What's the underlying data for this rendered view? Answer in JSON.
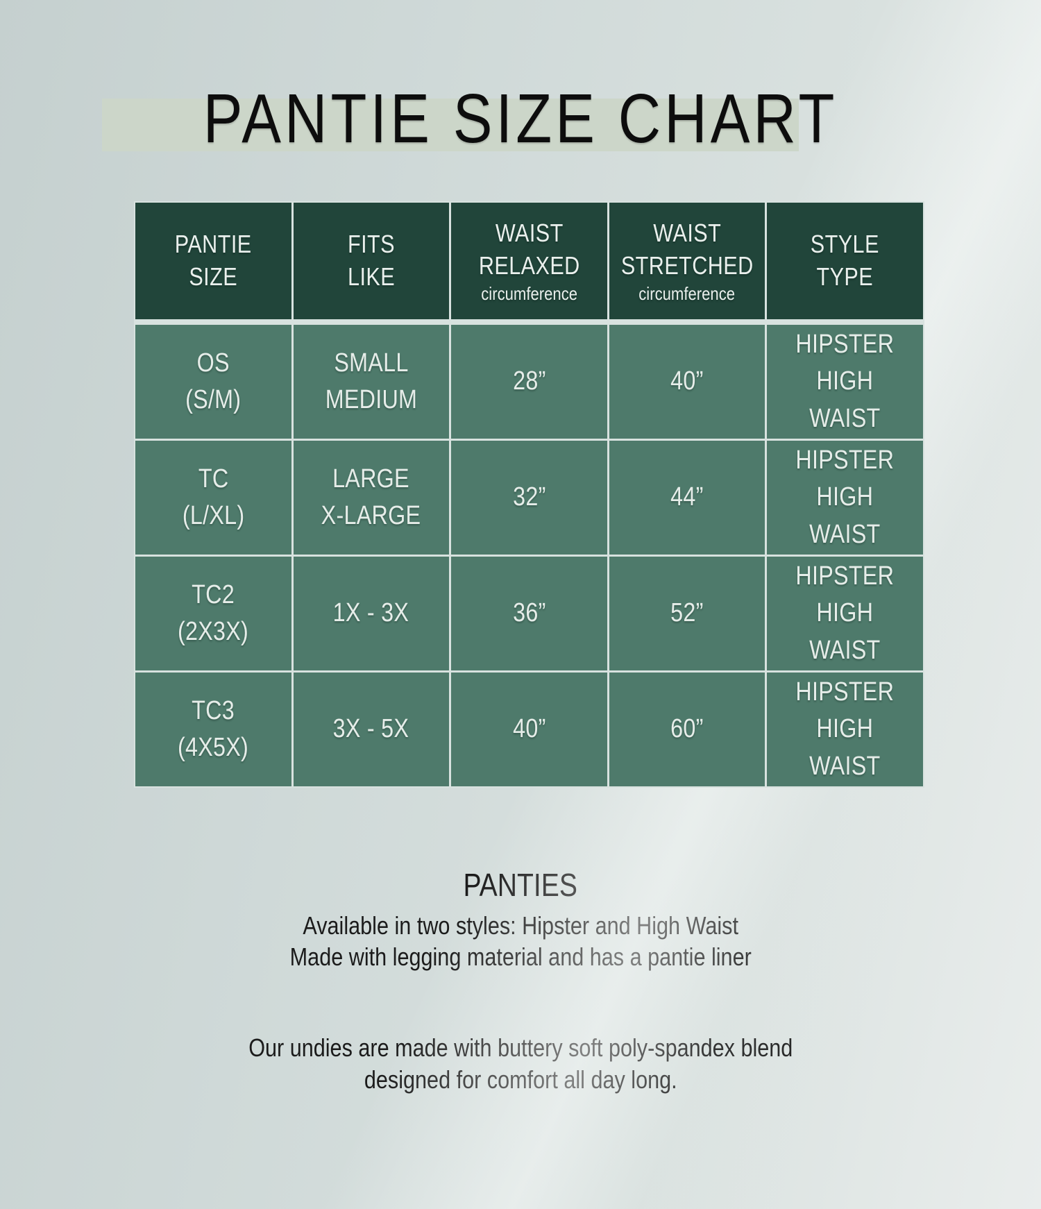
{
  "title": "PANTIE SIZE CHART",
  "colors": {
    "header_bg": "#21453a",
    "cell_bg": "#4e7a6b",
    "divider": "#d8e2df",
    "band": "#ccd6c9",
    "title_color": "#0d0d0d",
    "header_text": "#eaf0ed",
    "cell_text": "#e6ede9",
    "body_text": "#1b1b1b"
  },
  "table": {
    "columns": [
      {
        "label": "PANTIE\nSIZE",
        "subtitle": ""
      },
      {
        "label": "FITS\nLIKE",
        "subtitle": ""
      },
      {
        "label": "WAIST\nRELAXED",
        "subtitle": "circumference"
      },
      {
        "label": "WAIST\nSTRETCHED",
        "subtitle": "circumference"
      },
      {
        "label": "STYLE\nTYPE",
        "subtitle": ""
      }
    ],
    "rows": [
      {
        "cells": [
          "OS\n(S/M)",
          "SMALL\nMEDIUM",
          "28”",
          "40”",
          "HIPSTER\nHIGH WAIST"
        ]
      },
      {
        "cells": [
          "TC\n(L/XL)",
          "LARGE\nX-LARGE",
          "32”",
          "44”",
          "HIPSTER\nHIGH WAIST"
        ]
      },
      {
        "cells": [
          "TC2\n(2X3X)",
          "1X - 3X",
          "36”",
          "52”",
          "HIPSTER\nHIGH WAIST"
        ]
      },
      {
        "cells": [
          "TC3\n(4X5X)",
          "3X - 5X",
          "40”",
          "60”",
          "HIPSTER\nHIGH WAIST"
        ]
      }
    ]
  },
  "footer": {
    "heading": "PANTIES",
    "line1": "Available in two styles: Hipster and High Waist",
    "line2": "Made with legging material and has a pantie liner",
    "note": "Our undies are made with buttery soft poly-spandex blend\ndesigned for comfort all day long."
  }
}
